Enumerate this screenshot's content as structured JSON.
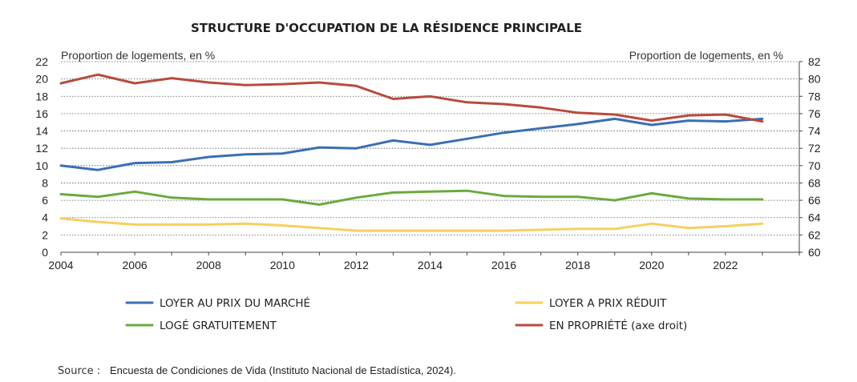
{
  "chart_data": {
    "type": "line",
    "title": "STRUCTURE D'OCCUPATION DE LA RÉSIDENCE PRINCIPALE",
    "y_left_label": "Proportion de logements, en %",
    "y_right_label": "Proportion de logements, en %",
    "x": [
      2004,
      2005,
      2006,
      2007,
      2008,
      2009,
      2010,
      2011,
      2012,
      2013,
      2014,
      2015,
      2016,
      2017,
      2018,
      2019,
      2020,
      2021,
      2022,
      2023
    ],
    "x_ticks": [
      "2004",
      "2006",
      "2008",
      "2010",
      "2012",
      "2014",
      "2016",
      "2018",
      "2020",
      "2022"
    ],
    "y_left_ticks": [
      "0",
      "2",
      "4",
      "6",
      "8",
      "10",
      "12",
      "14",
      "16",
      "18",
      "20",
      "22"
    ],
    "y_right_ticks": [
      "60",
      "62",
      "64",
      "66",
      "68",
      "70",
      "72",
      "74",
      "76",
      "78",
      "80",
      "82"
    ],
    "ylim_left": [
      0,
      22
    ],
    "ylim_right": [
      60,
      82
    ],
    "grid": "horizontal dotted",
    "legend_position": "bottom",
    "series": [
      {
        "name": "LOYER AU PRIX DU MARCHÉ",
        "axis": "left",
        "color": "#3a6fb3",
        "values": [
          10.0,
          9.5,
          10.3,
          10.4,
          11.0,
          11.3,
          11.4,
          12.1,
          12.0,
          12.9,
          12.4,
          13.1,
          13.8,
          14.3,
          14.8,
          15.4,
          14.7,
          15.2,
          15.1,
          15.4
        ]
      },
      {
        "name": "LOYER A PRIX RÉDUIT",
        "axis": "left",
        "color": "#f7cf5f",
        "values": [
          3.9,
          3.5,
          3.2,
          3.2,
          3.2,
          3.3,
          3.1,
          2.8,
          2.5,
          2.5,
          2.5,
          2.5,
          2.5,
          2.6,
          2.7,
          2.7,
          3.3,
          2.8,
          3.0,
          3.3
        ]
      },
      {
        "name": "LOGÉ GRATUITEMENT",
        "axis": "left",
        "color": "#6aaa3e",
        "values": [
          6.7,
          6.4,
          7.0,
          6.3,
          6.1,
          6.1,
          6.1,
          5.5,
          6.3,
          6.9,
          7.0,
          7.1,
          6.5,
          6.4,
          6.4,
          6.0,
          6.8,
          6.2,
          6.1,
          6.1
        ]
      },
      {
        "name": "EN PROPRIÉTÉ (axe droit)",
        "axis": "right",
        "color": "#b84a3e",
        "values": [
          79.5,
          80.5,
          79.5,
          80.1,
          79.6,
          79.3,
          79.4,
          79.6,
          79.2,
          77.7,
          78.0,
          77.3,
          77.1,
          76.7,
          76.1,
          75.9,
          75.2,
          75.8,
          75.9,
          75.1
        ]
      }
    ]
  },
  "source": {
    "label": "Source :",
    "text": "Encuesta de Condiciones de Vida (Instituto Nacional de Estadística, 2024)."
  }
}
